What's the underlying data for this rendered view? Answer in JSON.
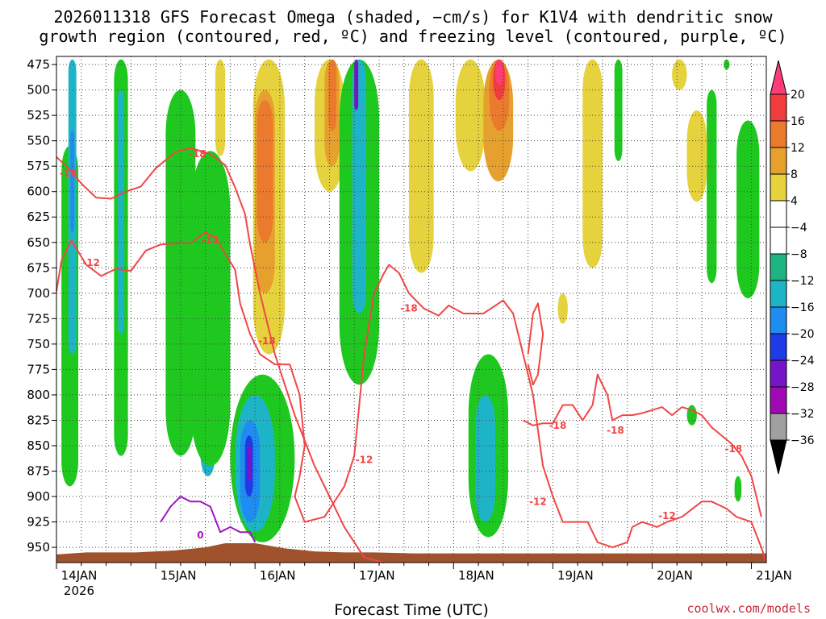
{
  "chart_data": {
    "type": "heatmap",
    "title_lines": [
      "2026011318 GFS Forecast Omega (shaded, −cm/s) for K1V4 with dendritic snow",
      "growth region (contoured, red, ºC) and freezing level (contoured, purple, ºC)"
    ],
    "xlabel": "Forecast Time (UTC)",
    "ylabel": "",
    "x_ticks": [
      "14JAN",
      "15JAN",
      "16JAN",
      "17JAN",
      "18JAN",
      "19JAN",
      "20JAN",
      "21JAN"
    ],
    "x_year": "2026",
    "xlim": [
      0.0,
      7.15
    ],
    "y_ticks": [
      475,
      500,
      525,
      550,
      575,
      600,
      625,
      650,
      675,
      700,
      725,
      750,
      775,
      800,
      825,
      850,
      875,
      900,
      925,
      950
    ],
    "ylim": [
      965,
      467
    ],
    "grid": true,
    "credit": "coolwx.com/models",
    "colorbar": {
      "labels": [
        "20",
        "16",
        "12",
        "8",
        "4",
        "−4",
        "−8",
        "−12",
        "−16",
        "−20",
        "−24",
        "−28",
        "−32",
        "−36"
      ],
      "colors": [
        "#ff3c78",
        "#f03c3c",
        "#eb7a2d",
        "#e6a02d",
        "#e6d23c",
        "#ffffff",
        "#1ec81e",
        "#1eb482",
        "#1eb4c8",
        "#1e8cf0",
        "#1e3ce6",
        "#7814c8",
        "#a00ab4",
        "#a0a0a0",
        "#000000"
      ]
    },
    "contour_colors": {
      "dgz": "#f04646",
      "freezing": "#a014c8",
      "terrain": "#a0522d"
    },
    "contour_labels": [
      {
        "text": "-18",
        "x": 0.12,
        "p": 582
      },
      {
        "text": "-18",
        "x": 1.42,
        "p": 563
      },
      {
        "text": "-12",
        "x": 0.35,
        "p": 670
      },
      {
        "text": "-12",
        "x": 1.55,
        "p": 648
      },
      {
        "text": "-18",
        "x": 2.12,
        "p": 747
      },
      {
        "text": "-18",
        "x": 3.55,
        "p": 715
      },
      {
        "text": "-12",
        "x": 3.1,
        "p": 864
      },
      {
        "text": "-18",
        "x": 5.05,
        "p": 830
      },
      {
        "text": "-18",
        "x": 5.63,
        "p": 835
      },
      {
        "text": "-18",
        "x": 6.82,
        "p": 853
      },
      {
        "text": "-12",
        "x": 4.85,
        "p": 905
      },
      {
        "text": "-12",
        "x": 6.15,
        "p": 919
      },
      {
        "text": "0",
        "x": 1.45,
        "p": 938
      }
    ],
    "series": [
      {
        "name": "",
        "kind": "dgz",
        "x": [
          0.0,
          0.1,
          0.25,
          0.4,
          0.55,
          0.7,
          0.85,
          1.0,
          1.2,
          1.35,
          1.55,
          1.7,
          1.8,
          1.9,
          1.95,
          2.05,
          2.2,
          2.4,
          2.6,
          2.75,
          2.9,
          3.1,
          3.3
        ],
        "p": [
          566,
          575,
          592,
          606,
          607,
          600,
          595,
          577,
          561,
          557,
          563,
          574,
          596,
          622,
          652,
          700,
          760,
          820,
          870,
          900,
          930,
          960,
          965
        ]
      },
      {
        "name": "",
        "kind": "dgz",
        "x": [
          0.0,
          0.05,
          0.15,
          0.3,
          0.45,
          0.6,
          0.75,
          0.9,
          1.05,
          1.2,
          1.35,
          1.5,
          1.6,
          1.7,
          1.8,
          1.85,
          1.95,
          2.05,
          2.2,
          2.35,
          2.45,
          2.5,
          2.45,
          2.4,
          2.5,
          2.7,
          2.9,
          3.0,
          3.1,
          3.2,
          3.3,
          3.35,
          3.45,
          3.55,
          3.7,
          3.85,
          3.95,
          4.1,
          4.3,
          4.5,
          4.6,
          4.7,
          4.8,
          4.9,
          5.0,
          5.1,
          5.25,
          5.35,
          5.45,
          5.6,
          5.75,
          5.8,
          5.9,
          6.05,
          6.15,
          6.3,
          6.5,
          6.6,
          6.75,
          6.85,
          7.0,
          7.1,
          7.15
        ],
        "p": [
          698,
          668,
          648,
          672,
          683,
          676,
          678,
          658,
          652,
          651,
          651,
          640,
          645,
          661,
          677,
          710,
          740,
          760,
          770,
          770,
          800,
          850,
          880,
          900,
          925,
          920,
          890,
          860,
          760,
          700,
          680,
          672,
          680,
          700,
          715,
          722,
          712,
          720,
          720,
          707,
          720,
          760,
          800,
          870,
          900,
          925,
          925,
          925,
          945,
          950,
          945,
          930,
          925,
          930,
          925,
          920,
          905,
          905,
          912,
          920,
          925,
          950,
          965
        ]
      },
      {
        "name": "",
        "kind": "dgz",
        "x": [
          4.7,
          4.8,
          4.9,
          5.0,
          5.1,
          5.2,
          5.3,
          5.4,
          5.45,
          5.5,
          5.55,
          5.6,
          5.7,
          5.8,
          5.9,
          6.0,
          6.1,
          6.2,
          6.3,
          6.4,
          6.5,
          6.6,
          6.7,
          6.8,
          6.9,
          7.0,
          7.05,
          7.1
        ],
        "p": [
          825,
          830,
          828,
          828,
          810,
          810,
          825,
          810,
          780,
          790,
          800,
          825,
          820,
          820,
          818,
          815,
          812,
          820,
          812,
          815,
          820,
          832,
          840,
          848,
          860,
          880,
          900,
          920
        ]
      },
      {
        "name": "",
        "kind": "dgz",
        "x": [
          4.75,
          4.8,
          4.85,
          4.9,
          4.85,
          4.8,
          4.75
        ],
        "p": [
          760,
          720,
          710,
          740,
          780,
          790,
          770
        ]
      },
      {
        "name": "",
        "kind": "freezing",
        "x": [
          1.05,
          1.15,
          1.25,
          1.35,
          1.45,
          1.55,
          1.65,
          1.75,
          1.85,
          1.95,
          2.0
        ],
        "p": [
          925,
          910,
          900,
          905,
          905,
          910,
          935,
          930,
          935,
          935,
          945
        ]
      }
    ],
    "shading": [
      {
        "v": -8,
        "x0": 0.05,
        "x1": 0.22,
        "p0": 555,
        "p1": 890
      },
      {
        "v": -12,
        "x0": 0.12,
        "x1": 0.2,
        "p0": 470,
        "p1": 760
      },
      {
        "v": -16,
        "x0": 0.14,
        "x1": 0.18,
        "p0": 540,
        "p1": 640
      },
      {
        "v": -8,
        "x0": 0.58,
        "x1": 0.72,
        "p0": 470,
        "p1": 860
      },
      {
        "v": -12,
        "x0": 0.62,
        "x1": 0.68,
        "p0": 500,
        "p1": 740
      },
      {
        "v": -8,
        "x0": 1.1,
        "x1": 1.4,
        "p0": 500,
        "p1": 860
      },
      {
        "v": -12,
        "x0": 1.45,
        "x1": 1.6,
        "p0": 690,
        "p1": 880
      },
      {
        "v": -8,
        "x0": 1.35,
        "x1": 1.75,
        "p0": 560,
        "p1": 870
      },
      {
        "v": -8,
        "x0": 1.75,
        "x1": 2.4,
        "p0": 780,
        "p1": 945
      },
      {
        "v": -12,
        "x0": 1.8,
        "x1": 2.2,
        "p0": 800,
        "p1": 935
      },
      {
        "v": -16,
        "x0": 1.85,
        "x1": 2.05,
        "p0": 825,
        "p1": 925
      },
      {
        "v": -20,
        "x0": 1.9,
        "x1": 1.98,
        "p0": 840,
        "p1": 900
      },
      {
        "v": -24,
        "x0": 1.92,
        "x1": 1.96,
        "p0": 850,
        "p1": 885
      },
      {
        "v": 4,
        "x0": 1.6,
        "x1": 1.7,
        "p0": 470,
        "p1": 565
      },
      {
        "v": 4,
        "x0": 1.98,
        "x1": 2.3,
        "p0": 470,
        "p1": 760
      },
      {
        "v": 8,
        "x0": 2.0,
        "x1": 2.2,
        "p0": 500,
        "p1": 700
      },
      {
        "v": 12,
        "x0": 2.02,
        "x1": 2.18,
        "p0": 510,
        "p1": 650
      },
      {
        "v": 4,
        "x0": 2.6,
        "x1": 2.9,
        "p0": 470,
        "p1": 600
      },
      {
        "v": 8,
        "x0": 2.7,
        "x1": 2.85,
        "p0": 470,
        "p1": 575
      },
      {
        "v": 12,
        "x0": 2.74,
        "x1": 2.82,
        "p0": 470,
        "p1": 540
      },
      {
        "v": -8,
        "x0": 2.85,
        "x1": 3.25,
        "p0": 470,
        "p1": 790
      },
      {
        "v": -12,
        "x0": 2.98,
        "x1": 3.12,
        "p0": 470,
        "p1": 720
      },
      {
        "v": -24,
        "x0": 3.0,
        "x1": 3.04,
        "p0": 470,
        "p1": 520
      },
      {
        "v": -8,
        "x0": 4.15,
        "x1": 4.55,
        "p0": 760,
        "p1": 940
      },
      {
        "v": -12,
        "x0": 4.22,
        "x1": 4.42,
        "p0": 800,
        "p1": 925
      },
      {
        "v": 4,
        "x0": 3.55,
        "x1": 3.8,
        "p0": 470,
        "p1": 680
      },
      {
        "v": 4,
        "x0": 4.02,
        "x1": 4.32,
        "p0": 470,
        "p1": 580
      },
      {
        "v": 8,
        "x0": 4.3,
        "x1": 4.6,
        "p0": 470,
        "p1": 590
      },
      {
        "v": 12,
        "x0": 4.36,
        "x1": 4.56,
        "p0": 470,
        "p1": 540
      },
      {
        "v": 16,
        "x0": 4.4,
        "x1": 4.52,
        "p0": 470,
        "p1": 510
      },
      {
        "v": 20,
        "x0": 4.42,
        "x1": 4.5,
        "p0": 470,
        "p1": 495
      },
      {
        "v": -8,
        "x0": 5.62,
        "x1": 5.7,
        "p0": 470,
        "p1": 570
      },
      {
        "v": -8,
        "x0": 6.35,
        "x1": 6.45,
        "p0": 810,
        "p1": 830
      },
      {
        "v": -8,
        "x0": 6.55,
        "x1": 6.65,
        "p0": 500,
        "p1": 690
      },
      {
        "v": -8,
        "x0": 6.72,
        "x1": 6.78,
        "p0": 470,
        "p1": 480
      },
      {
        "v": -8,
        "x0": 6.83,
        "x1": 6.9,
        "p0": 880,
        "p1": 905
      },
      {
        "v": -8,
        "x0": 6.85,
        "x1": 7.08,
        "p0": 530,
        "p1": 705
      },
      {
        "v": 4,
        "x0": 5.3,
        "x1": 5.5,
        "p0": 470,
        "p1": 675
      },
      {
        "v": 4,
        "x0": 6.2,
        "x1": 6.35,
        "p0": 470,
        "p1": 500
      },
      {
        "v": 4,
        "x0": 6.35,
        "x1": 6.55,
        "p0": 520,
        "p1": 610
      },
      {
        "v": 4,
        "x0": 5.05,
        "x1": 5.15,
        "p0": 700,
        "p1": 730
      }
    ]
  }
}
